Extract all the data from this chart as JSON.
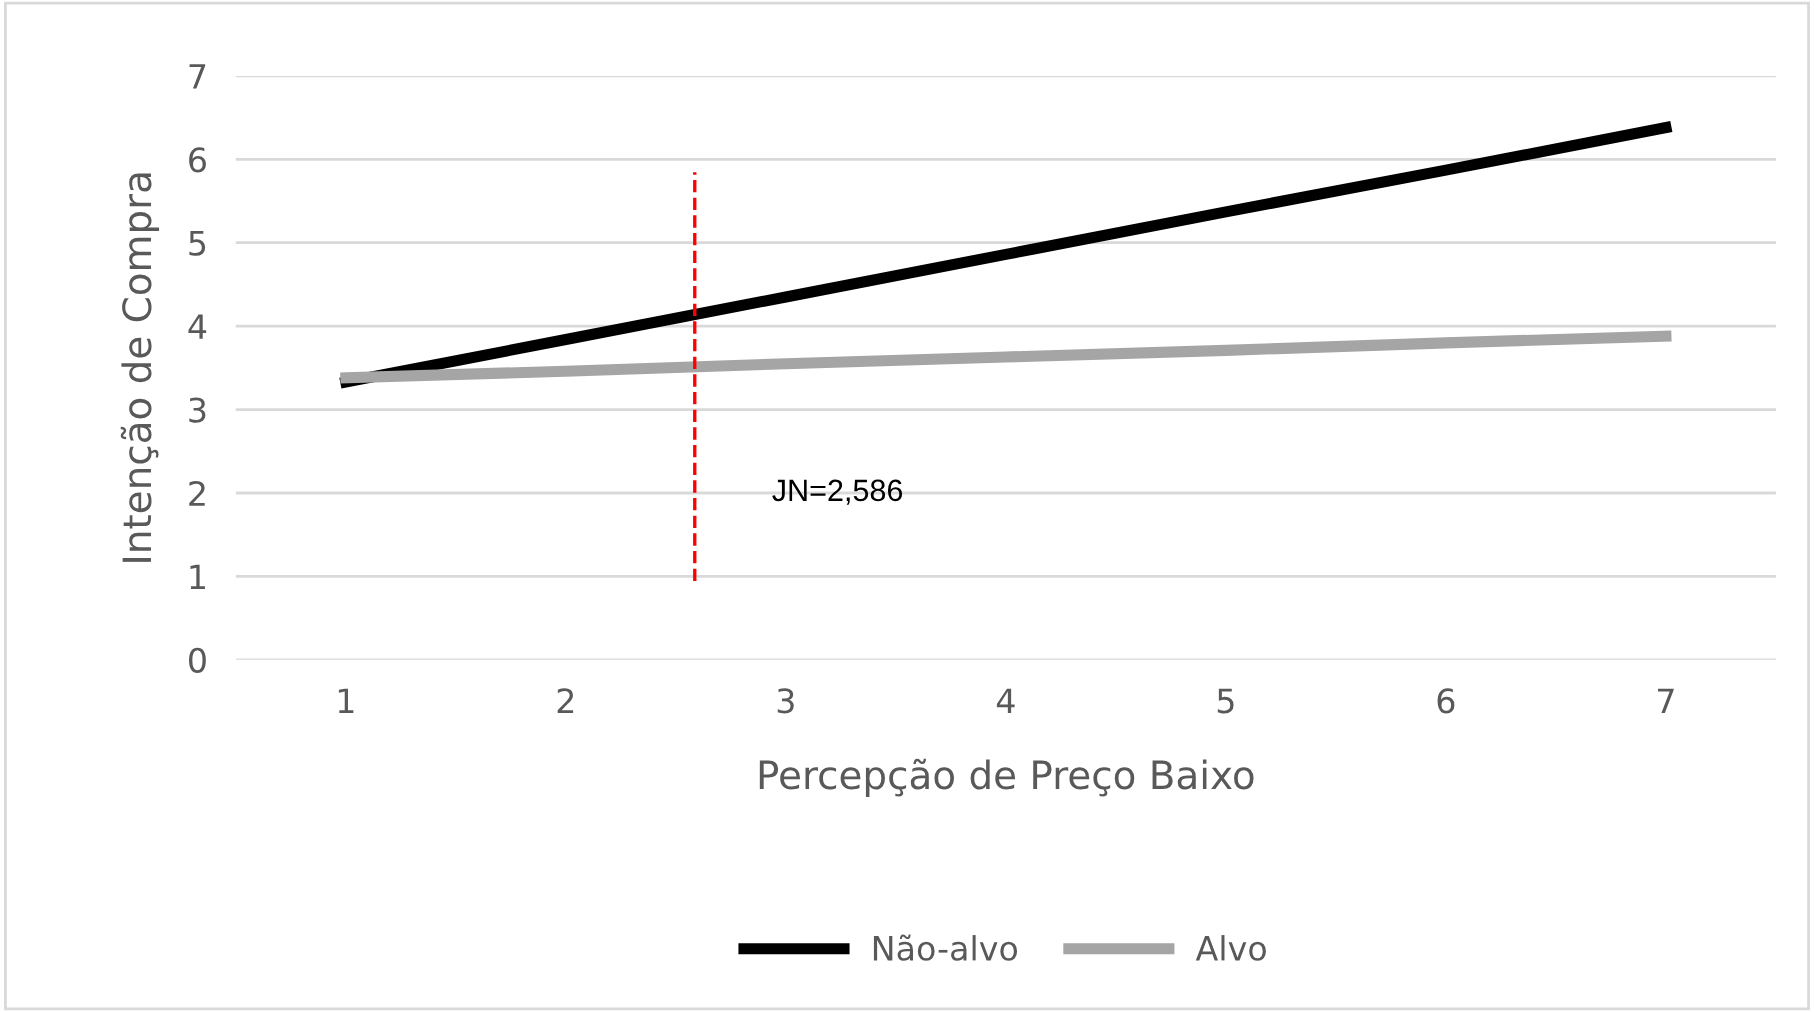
{
  "chart_data": {
    "type": "line",
    "xlabel": "Percepção de Preço Baixo",
    "ylabel": "Intenção de Compra",
    "x": [
      1,
      2,
      3,
      4,
      5,
      6,
      7
    ],
    "xlim": [
      0.5,
      7.5
    ],
    "xticks": [
      1,
      2,
      3,
      4,
      5,
      6,
      7
    ],
    "ylim": [
      0,
      7
    ],
    "yticks": [
      0,
      1,
      2,
      3,
      4,
      5,
      6,
      7
    ],
    "series": [
      {
        "name": "Não-alvo",
        "color": "#000000",
        "values": [
          3.33,
          3.84,
          4.35,
          4.86,
          5.37,
          5.87,
          6.38
        ]
      },
      {
        "name": "Alvo",
        "color": "#a5a5a5",
        "values": [
          3.38,
          3.46,
          3.55,
          3.63,
          3.71,
          3.8,
          3.88
        ]
      }
    ],
    "ref_lines": [
      {
        "axis": "x",
        "value": 2.586,
        "label": "JN=2,586",
        "color": "#ff0000",
        "line_style": "dashed"
      }
    ],
    "grid": "y",
    "legend": "bottom",
    "marker": "none",
    "line_style": "solid"
  }
}
